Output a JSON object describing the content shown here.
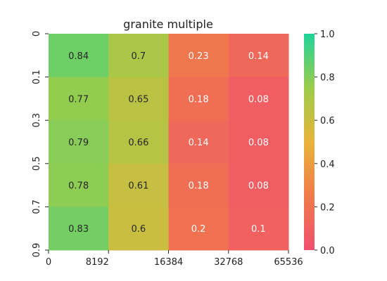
{
  "chart_data": {
    "type": "heatmap",
    "title": "granite multiple",
    "xlabel": "",
    "ylabel": "",
    "x_tick_labels": [
      "0",
      "8192",
      "16384",
      "32768",
      "65536"
    ],
    "y_tick_labels": [
      "0",
      "0.1",
      "0.3",
      "0.5",
      "0.7",
      "0.9"
    ],
    "columns": 4,
    "rows": 5,
    "values": [
      [
        0.84,
        0.7,
        0.23,
        0.14
      ],
      [
        0.77,
        0.65,
        0.18,
        0.08
      ],
      [
        0.79,
        0.66,
        0.14,
        0.08
      ],
      [
        0.78,
        0.61,
        0.18,
        0.08
      ],
      [
        0.83,
        0.6,
        0.2,
        0.1
      ]
    ],
    "value_range": [
      0.0,
      1.0
    ],
    "colorbar": {
      "ticks": [
        "0.0",
        "0.2",
        "0.4",
        "0.6",
        "0.8",
        "1.0"
      ],
      "colors": [
        "#f0506e",
        "#f07a4a",
        "#e8b43a",
        "#9ccc4a",
        "#20d39a"
      ]
    },
    "grid": false,
    "legend": "colorbar-right"
  }
}
